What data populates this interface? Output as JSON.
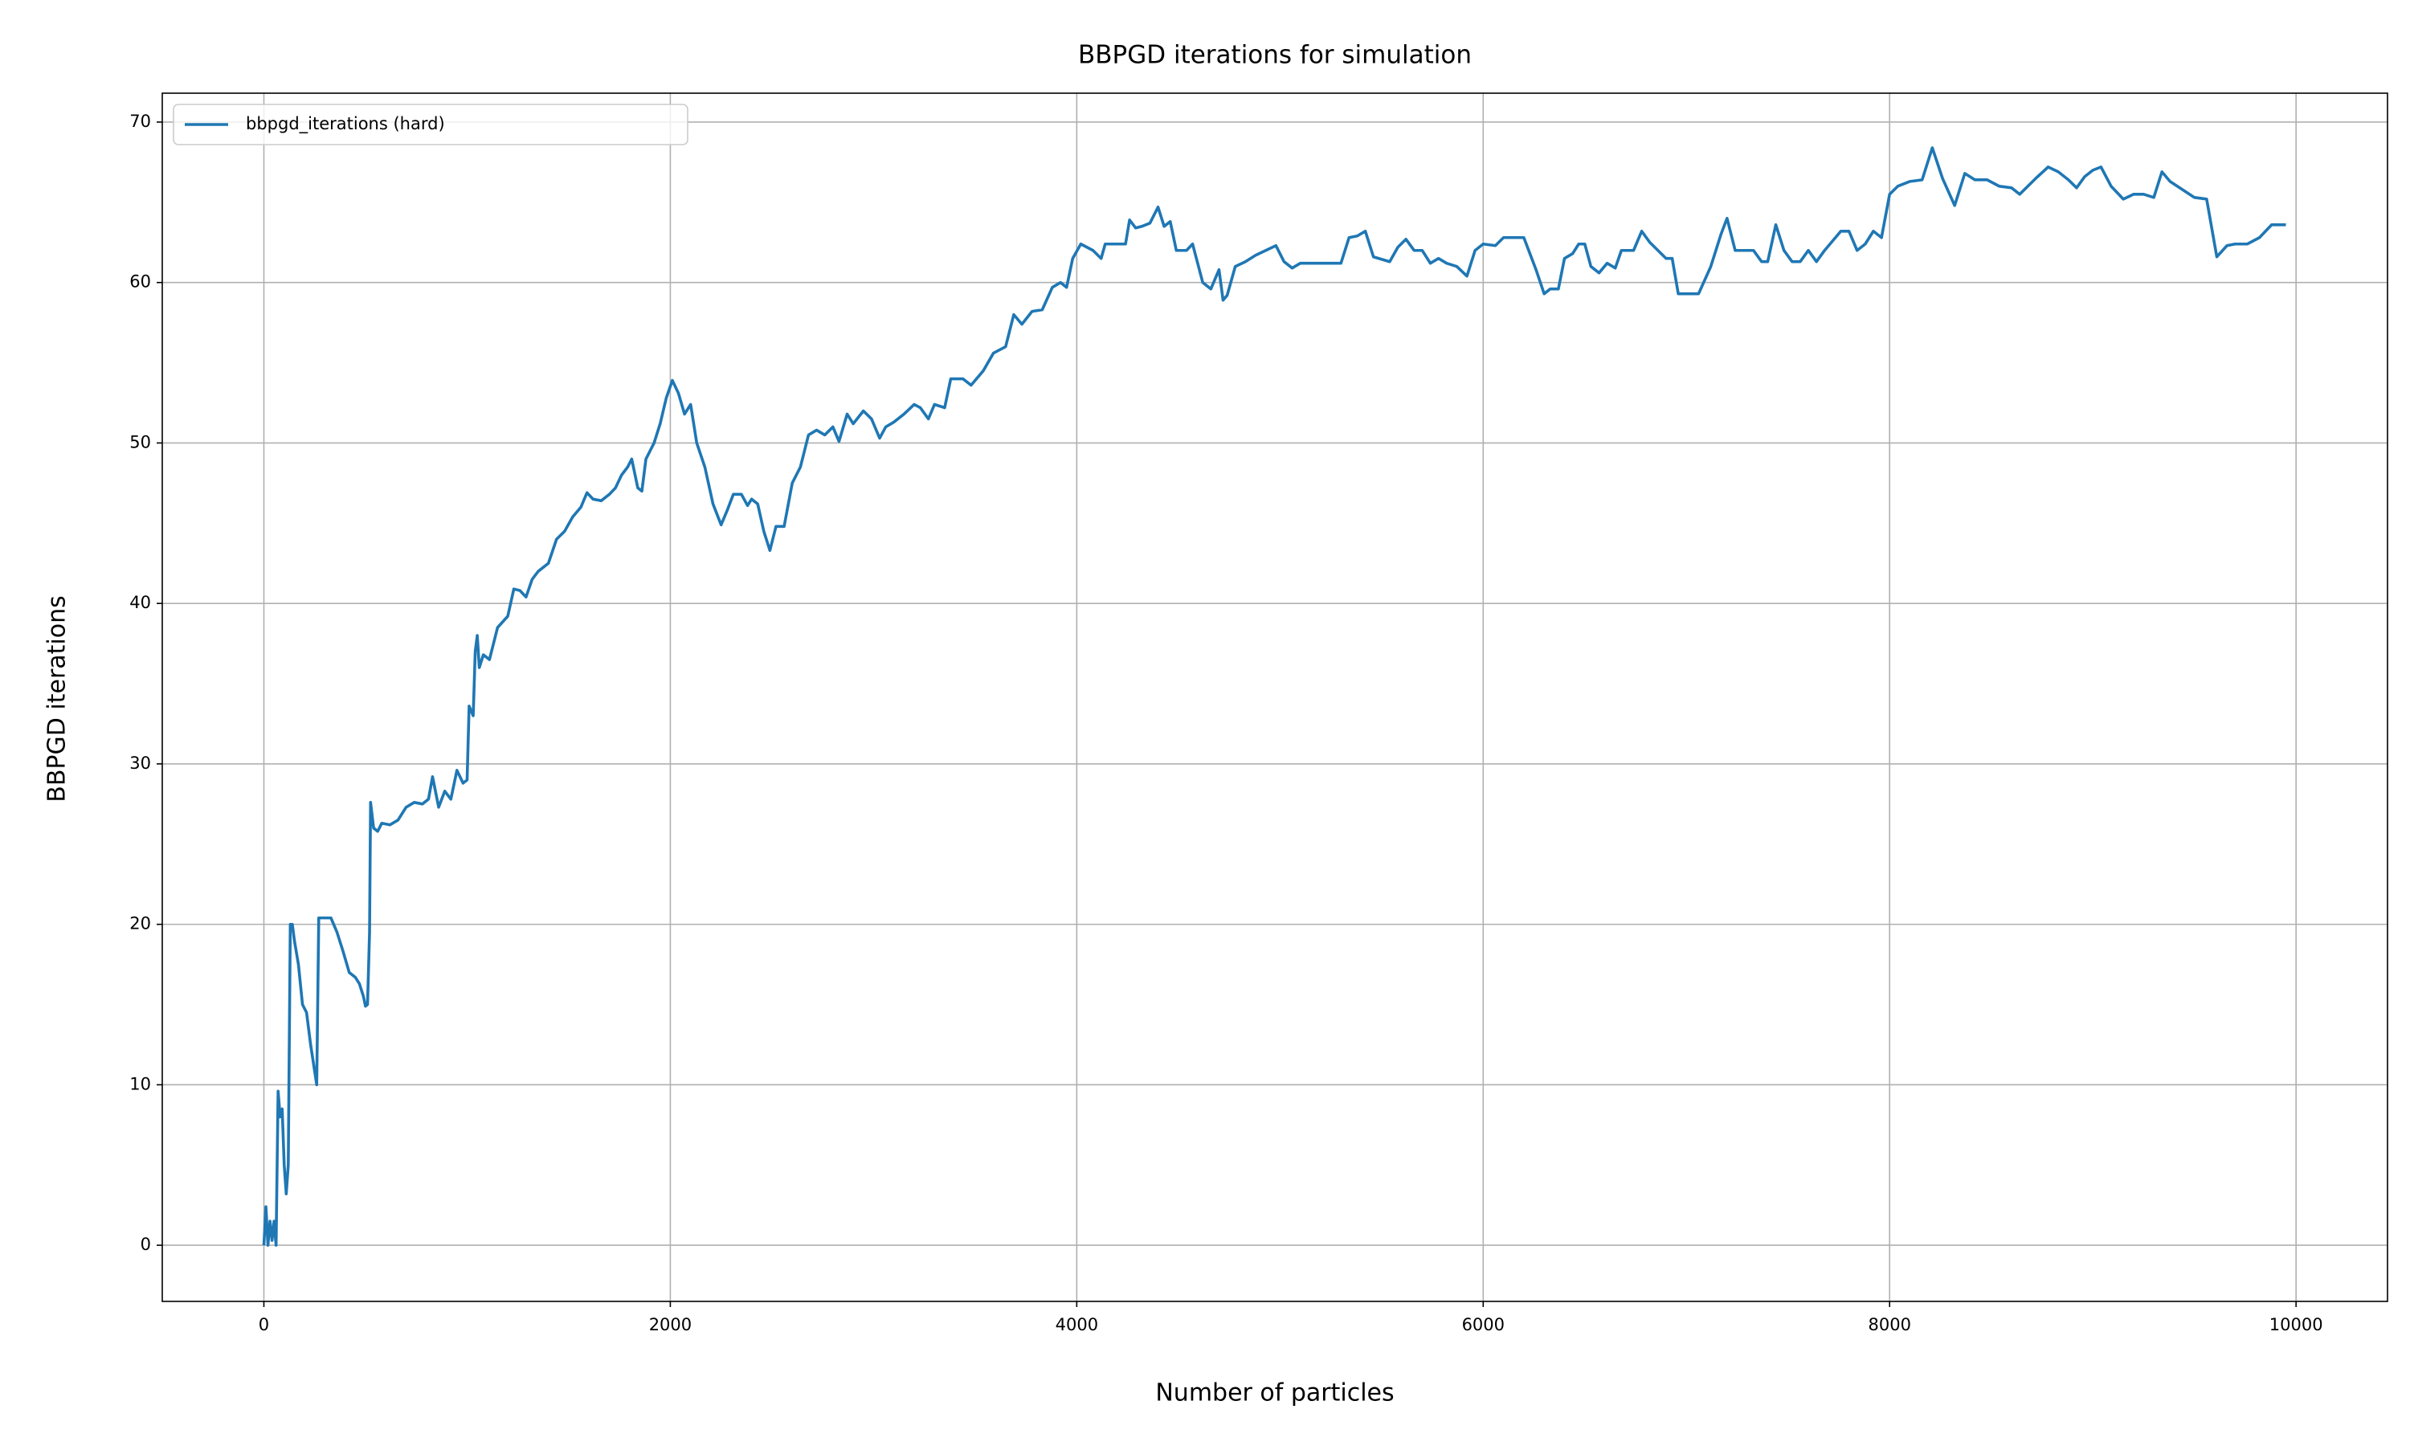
{
  "chart_data": {
    "type": "line",
    "title": "BBPGD iterations for simulation",
    "x_label": "Number of particles",
    "y_label": "BBPGD iterations",
    "xlim": [
      -500,
      10450
    ],
    "ylim": [
      -3.5,
      71.8
    ],
    "xticks": [
      0,
      2000,
      4000,
      6000,
      8000,
      10000
    ],
    "yticks": [
      0,
      10,
      20,
      30,
      40,
      50,
      60,
      70
    ],
    "grid": true,
    "legend": "upper left",
    "x": [
      0,
      10,
      20,
      30,
      40,
      50,
      60,
      70,
      80,
      90,
      100,
      110,
      120,
      130,
      140,
      150,
      170,
      190,
      210,
      230,
      260,
      270,
      300,
      330,
      360,
      390,
      420,
      450,
      470,
      490,
      500,
      510,
      520,
      525,
      540,
      560,
      580,
      620,
      660,
      700,
      740,
      780,
      810,
      830,
      860,
      890,
      920,
      950,
      980,
      1000,
      1010,
      1030,
      1040,
      1050,
      1060,
      1080,
      1110,
      1150,
      1200,
      1230,
      1260,
      1290,
      1320,
      1350,
      1400,
      1440,
      1480,
      1520,
      1560,
      1590,
      1620,
      1660,
      1700,
      1730,
      1760,
      1790,
      1810,
      1840,
      1860,
      1880,
      1920,
      1950,
      1980,
      2010,
      2040,
      2070,
      2100,
      2130,
      2170,
      2210,
      2250,
      2280,
      2310,
      2350,
      2380,
      2400,
      2430,
      2460,
      2490,
      2520,
      2560,
      2600,
      2640,
      2680,
      2720,
      2760,
      2800,
      2830,
      2870,
      2900,
      2950,
      2990,
      3030,
      3060,
      3100,
      3150,
      3200,
      3230,
      3270,
      3300,
      3350,
      3380,
      3440,
      3480,
      3540,
      3590,
      3650,
      3690,
      3730,
      3780,
      3830,
      3880,
      3920,
      3950,
      3980,
      4020,
      4080,
      4120,
      4140,
      4200,
      4240,
      4260,
      4290,
      4320,
      4360,
      4400,
      4430,
      4460,
      4490,
      4540,
      4570,
      4620,
      4660,
      4700,
      4720,
      4740,
      4780,
      4830,
      4880,
      4930,
      4980,
      5020,
      5060,
      5100,
      5200,
      5300,
      5340,
      5380,
      5420,
      5460,
      5540,
      5580,
      5620,
      5660,
      5700,
      5740,
      5780,
      5820,
      5870,
      5920,
      5960,
      6000,
      6060,
      6100,
      6200,
      6260,
      6300,
      6330,
      6370,
      6400,
      6440,
      6470,
      6500,
      6530,
      6570,
      6610,
      6650,
      6680,
      6740,
      6780,
      6820,
      6860,
      6900,
      6930,
      6960,
      7060,
      7120,
      7170,
      7200,
      7240,
      7330,
      7370,
      7400,
      7440,
      7480,
      7520,
      7560,
      7600,
      7640,
      7680,
      7720,
      7760,
      7800,
      7840,
      7880,
      7920,
      7960,
      8000,
      8040,
      8100,
      8160,
      8210,
      8260,
      8320,
      8370,
      8420,
      8480,
      8540,
      8600,
      8640,
      8720,
      8780,
      8830,
      8880,
      8920,
      8960,
      9000,
      9040,
      9090,
      9150,
      9200,
      9250,
      9300,
      9340,
      9380,
      9440,
      9500,
      9560,
      9610,
      9660,
      9700,
      9760,
      9820,
      9880,
      9950
    ],
    "series": [
      {
        "name": "bbpgd_iterations (hard)",
        "color": "#1f77b4",
        "values": [
          0,
          2.4,
          0,
          1.5,
          0.3,
          1.5,
          0,
          9.6,
          8,
          8.5,
          5,
          3.2,
          5,
          20,
          20,
          19,
          17.5,
          15,
          14.5,
          12.5,
          10,
          20.4,
          20.4,
          20.4,
          19.5,
          18.3,
          17,
          16.7,
          16.3,
          15.5,
          14.9,
          15,
          19.5,
          27.6,
          26,
          25.8,
          26.3,
          26.2,
          26.5,
          27.3,
          27.6,
          27.5,
          27.8,
          29.2,
          27.3,
          28.3,
          27.8,
          29.6,
          28.8,
          29,
          33.6,
          33,
          37,
          38,
          36,
          36.8,
          36.5,
          38.5,
          39.2,
          40.9,
          40.8,
          40.4,
          41.5,
          42,
          42.5,
          44,
          44.5,
          45.4,
          46,
          46.9,
          46.5,
          46.4,
          46.8,
          47.2,
          48,
          48.5,
          49,
          47.2,
          47,
          49,
          50,
          51.2,
          52.8,
          53.9,
          53.1,
          51.8,
          52.4,
          50,
          48.5,
          46.2,
          44.9,
          45.8,
          46.8,
          46.8,
          46.1,
          46.5,
          46.2,
          44.5,
          43.3,
          44.8,
          44.8,
          47.5,
          48.5,
          50.5,
          50.8,
          50.5,
          51,
          50.1,
          51.8,
          51.2,
          52,
          51.5,
          50.3,
          51,
          51.3,
          51.8,
          52.4,
          52.2,
          51.5,
          52.4,
          52.2,
          54,
          54,
          53.6,
          54.5,
          55.6,
          56,
          58,
          57.4,
          58.2,
          58.3,
          59.7,
          60,
          59.7,
          61.5,
          62.4,
          62,
          61.5,
          62.4,
          62.4,
          62.4,
          63.9,
          63.4,
          63.5,
          63.7,
          64.7,
          63.5,
          63.8,
          62,
          62,
          62.4,
          60,
          59.6,
          60.8,
          58.9,
          59.2,
          61,
          61.3,
          61.7,
          62,
          62.3,
          61.3,
          60.9,
          61.2,
          61.2,
          61.2,
          62.8,
          62.9,
          63.2,
          61.6,
          61.3,
          62.2,
          62.7,
          62,
          62,
          61.2,
          61.5,
          61.2,
          61,
          60.4,
          62,
          62.4,
          62.3,
          62.8,
          62.8,
          60.8,
          59.3,
          59.6,
          59.6,
          61.5,
          61.8,
          62.4,
          62.4,
          61,
          60.6,
          61.2,
          60.9,
          62,
          62,
          63.2,
          62.5,
          62,
          61.5,
          61.5,
          59.3,
          59.3,
          61,
          63,
          64,
          62,
          62,
          61.3,
          61.3,
          63.6,
          62,
          61.3,
          61.3,
          62,
          61.3,
          62,
          62.6,
          63.2,
          63.2,
          62,
          62.4,
          63.2,
          62.8,
          65.5,
          66,
          66.3,
          66.4,
          68.4,
          66.5,
          64.8,
          66.8,
          66.4,
          66.4,
          66,
          65.9,
          65.5,
          66.5,
          67.2,
          66.9,
          66.4,
          65.9,
          66.6,
          67,
          67.2,
          66,
          65.2,
          65.5,
          65.5,
          65.3,
          66.9,
          66.3,
          65.8,
          65.3,
          65.2,
          61.6,
          62.3,
          62.4,
          62.4,
          62.8,
          63.6,
          63.6
        ]
      }
    ]
  }
}
